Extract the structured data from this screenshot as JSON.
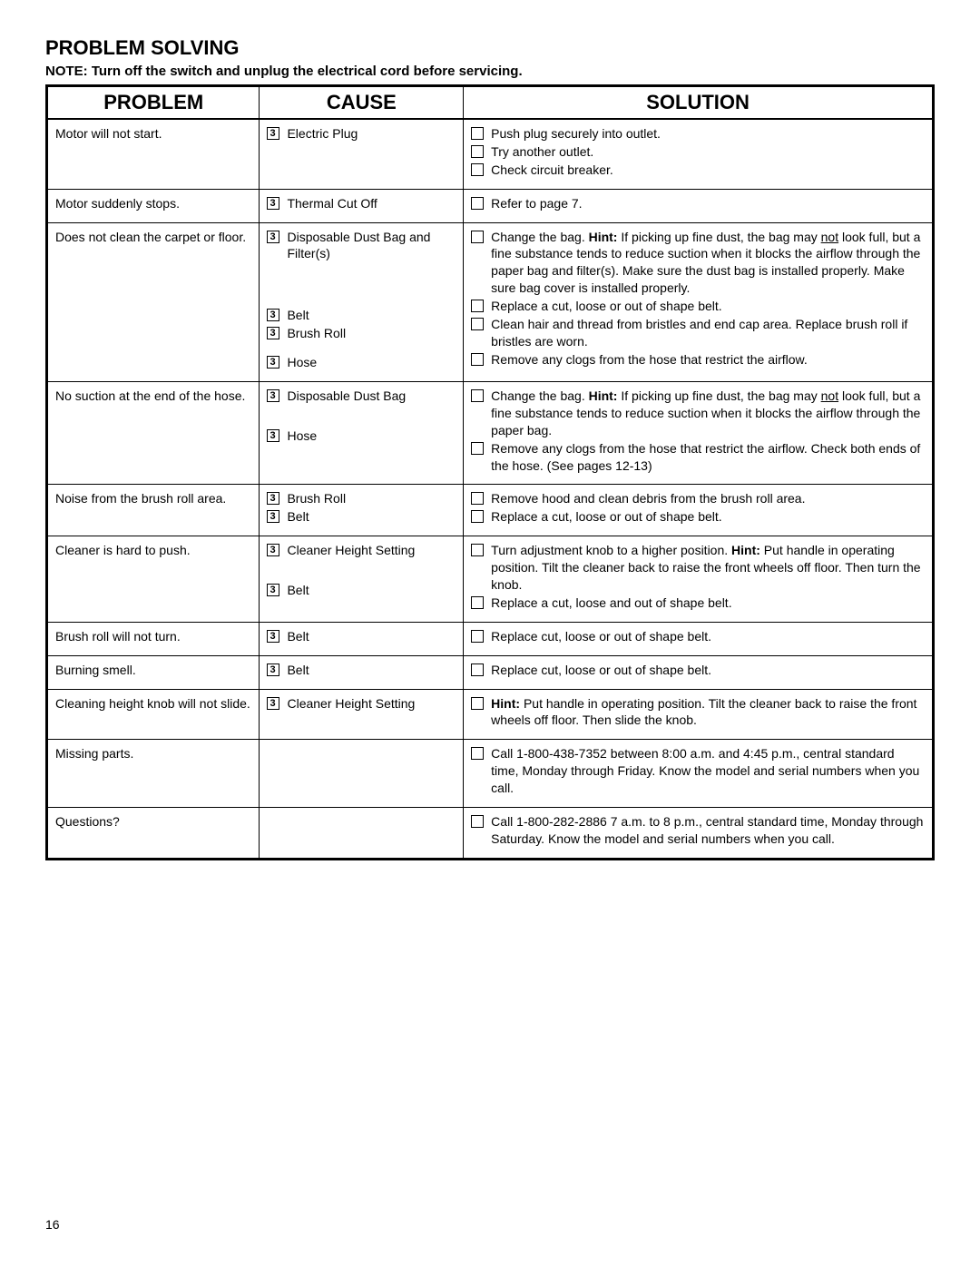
{
  "title": "PROBLEM SOLVING",
  "note": "NOTE:  Turn off the switch and unplug the electrical cord before servicing.",
  "headers": {
    "problem": "PROBLEM",
    "cause": "CAUSE",
    "solution": "SOLUTION"
  },
  "page_number": "16",
  "rows": [
    {
      "problem": "Motor will not start.",
      "causes": [
        "Electric Plug"
      ],
      "solutions": [
        {
          "t": "Push plug securely into outlet."
        },
        {
          "t": "Try another outlet."
        },
        {
          "t": "Check circuit breaker."
        }
      ]
    },
    {
      "problem": "Motor suddenly stops.",
      "causes": [
        "Thermal Cut Off"
      ],
      "solutions": [
        {
          "t": "Refer to page 7."
        }
      ]
    },
    {
      "problem": "Does not clean the carpet or floor.",
      "causes": [
        "Disposable Dust Bag and Filter(s)",
        "",
        "",
        "",
        "",
        "Belt",
        "Brush Roll",
        "",
        "Hose"
      ],
      "solutions": [
        {
          "html": "Change the bag. <b>Hint:</b> If picking up fine dust, the bag may <span class='underline'>not</span> look full, but a fine substance tends to reduce suction when it blocks the airflow through the paper bag and filter(s). Make sure the dust bag is installed properly. Make sure bag cover is installed properly."
        },
        {
          "t": "Replace a cut, loose or out of shape belt."
        },
        {
          "t": "Clean hair and thread from bristles and end cap area. Replace brush roll if bristles are worn."
        },
        {
          "t": "Remove any clogs from the hose that restrict the airflow."
        }
      ]
    },
    {
      "problem": "No suction at the end of the hose.",
      "causes": [
        "Disposable Dust Bag",
        "",
        "",
        "Hose"
      ],
      "solutions": [
        {
          "html": "Change the bag.  <b>Hint:</b> If picking up fine dust, the bag may <span class='underline'>not</span> look full, but a fine substance tends to reduce suction when it blocks the airflow through the paper bag."
        },
        {
          "t": "Remove any clogs from the hose that restrict the airflow. Check both ends of the hose. (See pages 12-13)"
        }
      ]
    },
    {
      "problem": "Noise from the brush roll area.",
      "causes": [
        "Brush Roll",
        "Belt"
      ],
      "solutions": [
        {
          "t": "Remove hood and clean debris from the brush roll area."
        },
        {
          "t": "Replace a cut, loose or out of shape belt."
        }
      ]
    },
    {
      "problem": "Cleaner is hard to push.",
      "causes": [
        "Cleaner Height Setting",
        "",
        "",
        "Belt"
      ],
      "solutions": [
        {
          "html": "Turn adjustment knob to a higher position. <b>Hint:</b> Put handle in operating position.  Tilt the cleaner back to raise the front wheels off floor. Then turn the knob."
        },
        {
          "t": "Replace a cut, loose and out of shape belt."
        }
      ]
    },
    {
      "problem": "Brush roll will not turn.",
      "causes": [
        "Belt"
      ],
      "solutions": [
        {
          "t": "Replace cut, loose or out of shape belt."
        }
      ]
    },
    {
      "problem": "Burning smell.",
      "causes": [
        "Belt"
      ],
      "solutions": [
        {
          "t": "Replace cut, loose or out of shape belt."
        }
      ]
    },
    {
      "problem": "Cleaning height knob will not slide.",
      "causes": [
        "Cleaner Height Setting"
      ],
      "solutions": [
        {
          "html": "<b>Hint:</b>  Put handle in operating position.  Tilt the cleaner back to raise the front wheels off floor. Then slide the knob."
        }
      ]
    },
    {
      "problem": "Missing parts.",
      "causes": [],
      "solutions": [
        {
          "t": "Call 1-800-438-7352 between 8:00 a.m. and 4:45 p.m., central standard time, Monday through Friday. Know the model and serial numbers when you call."
        }
      ]
    },
    {
      "problem": "Questions?",
      "causes": [],
      "solutions": [
        {
          "t": "Call 1-800-282-2886 7 a.m. to 8 p.m., central standard time, Monday through Saturday. Know the model and serial numbers when you call."
        }
      ]
    }
  ]
}
